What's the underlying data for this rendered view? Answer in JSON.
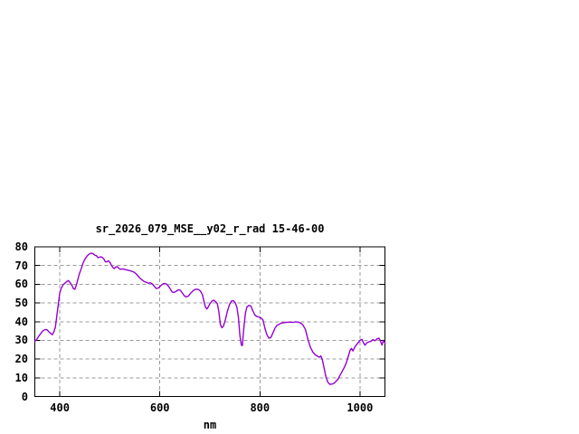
{
  "window": {
    "background": "#ffffff"
  },
  "chart_data": {
    "type": "line",
    "title": "sr_2026_079_MSE__y02_r_rad 15-46-00",
    "xlabel": "nm",
    "ylabel": "",
    "xlim": [
      350,
      1050
    ],
    "ylim": [
      0,
      80
    ],
    "xticks": [
      400,
      600,
      800,
      1000
    ],
    "yticks": [
      0,
      10,
      20,
      30,
      40,
      50,
      60,
      70,
      80
    ],
    "grid": true,
    "legend_position": "none",
    "colors": {
      "line": "#9400d3",
      "grid": "#999999",
      "axis": "#000000",
      "text": "#000000",
      "background": "#ffffff"
    },
    "series": [
      {
        "x": [
          350,
          354,
          358,
          362,
          366,
          370,
          374,
          378,
          382,
          385,
          388,
          391,
          394,
          397,
          400,
          403,
          406,
          410,
          414,
          417,
          420,
          424,
          427,
          430,
          433,
          436,
          439,
          443,
          446,
          449,
          452,
          455,
          458,
          461,
          464,
          467,
          470,
          473,
          476,
          479,
          482,
          485,
          488,
          491,
          494,
          497,
          500,
          503,
          506,
          509,
          512,
          515,
          518,
          521,
          525,
          529,
          533,
          537,
          541,
          545,
          549,
          553,
          557,
          561,
          565,
          569,
          573,
          577,
          581,
          585,
          589,
          593,
          597,
          601,
          605,
          609,
          613,
          617,
          621,
          625,
          629,
          633,
          637,
          641,
          645,
          649,
          653,
          657,
          661,
          665,
          669,
          673,
          677,
          681,
          685,
          688,
          691,
          694,
          697,
          700,
          704,
          708,
          712,
          715,
          718,
          721,
          724,
          727,
          731,
          735,
          739,
          743,
          747,
          751,
          754,
          757,
          760,
          763,
          765,
          768,
          771,
          774,
          778,
          782,
          786,
          790,
          794,
          798,
          802,
          806,
          810,
          814,
          818,
          822,
          826,
          830,
          834,
          838,
          842,
          846,
          851,
          856,
          861,
          866,
          871,
          876,
          881,
          886,
          891,
          896,
          901,
          906,
          911,
          915,
          919,
          922,
          925,
          928,
          932,
          936,
          940,
          944,
          948,
          952,
          956,
          960,
          964,
          968,
          972,
          976,
          980,
          983,
          986,
          990,
          994,
          998,
          1001,
          1004,
          1007,
          1010,
          1014,
          1018,
          1022,
          1026,
          1030,
          1034,
          1038,
          1041,
          1044,
          1047,
          1050
        ],
        "y": [
          29.4,
          30.5,
          32.3,
          33.7,
          35,
          35.7,
          35.7,
          34.6,
          33.6,
          33,
          34.5,
          37,
          43,
          49.5,
          55.5,
          58,
          59.5,
          60.5,
          61.5,
          62,
          61,
          59.5,
          57.7,
          57.3,
          59.5,
          62.5,
          65.5,
          68.5,
          71,
          72.8,
          74.2,
          75.2,
          76,
          76.5,
          76.5,
          76.3,
          75.5,
          75.3,
          74.3,
          74.4,
          74.7,
          74.3,
          73.5,
          72,
          72,
          72.5,
          71.8,
          70.2,
          69,
          68.4,
          69.2,
          69.4,
          68.5,
          68,
          68.2,
          68,
          67.7,
          67.5,
          67.2,
          66.8,
          66.3,
          65.5,
          64.3,
          63,
          62.2,
          61.4,
          61,
          60.5,
          60.8,
          60.2,
          58.9,
          57.7,
          58,
          59,
          60,
          60.4,
          60.2,
          59,
          57.4,
          55.8,
          55.7,
          56.3,
          57.1,
          56.8,
          55.3,
          53.8,
          53.2,
          53.7,
          55,
          56.2,
          57.1,
          57.4,
          57.2,
          56.4,
          54.5,
          51,
          47.8,
          46.8,
          48,
          49.5,
          51,
          51.5,
          50.5,
          49.5,
          45,
          38.5,
          36.8,
          37.5,
          41,
          45.5,
          49,
          51,
          51.2,
          50,
          47.5,
          42.5,
          32.5,
          27.5,
          27.2,
          37,
          44.5,
          47.8,
          48.7,
          48.4,
          45.8,
          43.5,
          42.8,
          42.5,
          42,
          41,
          36.5,
          33,
          31.2,
          31.5,
          34,
          36.5,
          38,
          38.5,
          39.2,
          39.4,
          39.6,
          39.7,
          39.8,
          39.6,
          39.9,
          39.8,
          39.3,
          38.3,
          35.8,
          30.5,
          26.3,
          23.7,
          22.2,
          21.5,
          21,
          21.7,
          19.5,
          15.5,
          10.5,
          7.5,
          6.5,
          6.6,
          7,
          8,
          9.2,
          11.2,
          13.2,
          15.2,
          17.5,
          20.8,
          24.5,
          25.7,
          24.3,
          26.5,
          28,
          29.2,
          30.2,
          30.5,
          28.8,
          27.4,
          28.7,
          29.2,
          29.5,
          30.4,
          29.8,
          30.8,
          31.2,
          29.7,
          27.5,
          30,
          28.5
        ]
      }
    ]
  }
}
